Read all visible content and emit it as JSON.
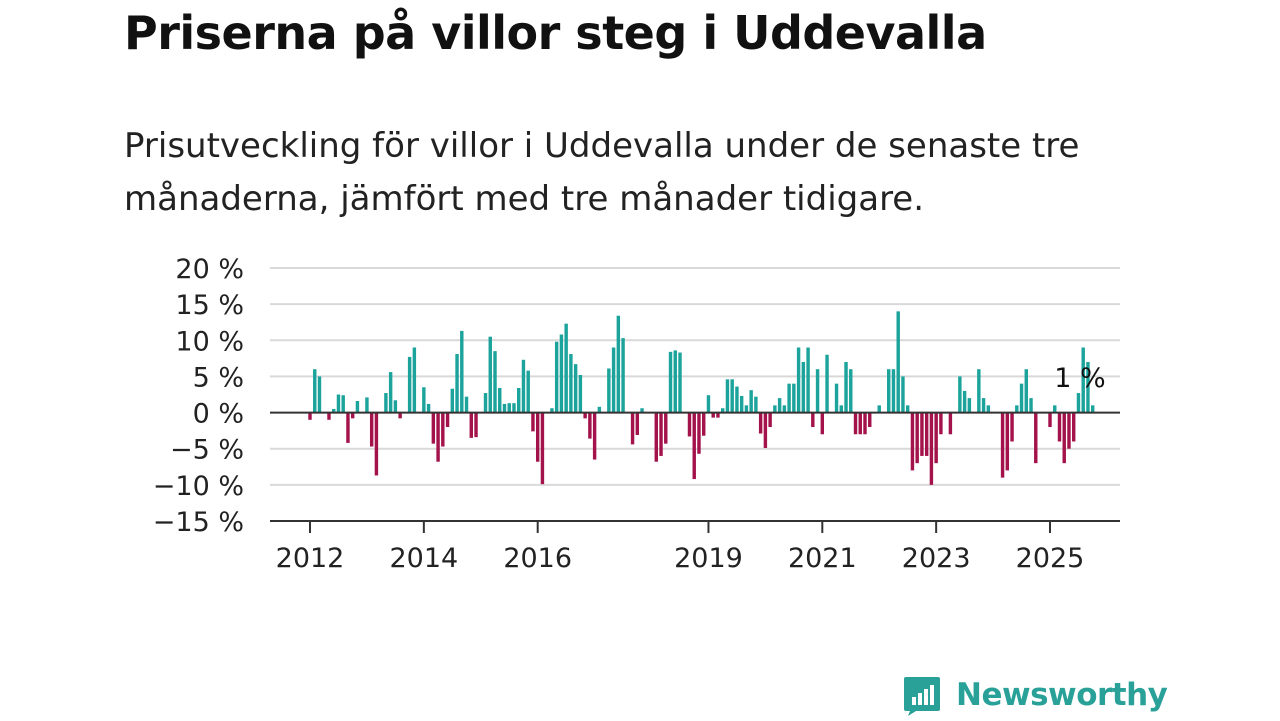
{
  "header": {
    "title": "Priserna på villor steg i Uddevalla",
    "subtitle": "Prisutveckling för villor i Uddevalla under de senaste tre månaderna, jämfört med tre månader tidigare."
  },
  "brand": {
    "name": "Newsworthy",
    "icon": "newsworthy-logo-icon",
    "color": "#2aa198"
  },
  "chart_data": {
    "type": "bar",
    "title": "",
    "xlabel": "",
    "ylabel": "",
    "y_unit": "%",
    "ylim": [
      -15,
      20
    ],
    "y_ticks": [
      20,
      15,
      10,
      5,
      0,
      -5,
      -10,
      -15
    ],
    "y_tick_labels": [
      "20 %",
      "15 %",
      "10 %",
      "5 %",
      "0 %",
      "−5 %",
      "−10 %",
      "−15 %"
    ],
    "x_ticks": [
      2012,
      2014,
      2016,
      2019,
      2021,
      2023,
      2025
    ],
    "x_tick_labels": [
      "2012",
      "2014",
      "2016",
      "2019",
      "2021",
      "2023",
      "2025"
    ],
    "grid": true,
    "positive_color": "#1ba39c",
    "negative_color": "#a3124a",
    "last_value_label": "1 %",
    "series": [
      {
        "start": "2012-01",
        "frequency": "monthly",
        "values": [
          -1,
          6,
          5,
          null,
          -1,
          0.5,
          2.5,
          2.4,
          -4.2,
          -0.8,
          1.6,
          null,
          2.1,
          -4.7,
          -8.7,
          null,
          2.7,
          5.6,
          1.7,
          -0.8,
          null,
          7.7,
          9,
          null,
          3.5,
          1.2,
          -4.3,
          -6.8,
          -4.7,
          -2,
          3.3,
          8.1,
          11.3,
          2.2,
          -3.5,
          -3.4,
          null,
          2.7,
          10.5,
          8.5,
          3.4,
          1.2,
          1.3,
          1.3,
          3.4,
          7.3,
          5.8,
          -2.6,
          -6.8,
          -9.9,
          null,
          0.6,
          9.8,
          10.8,
          12.3,
          8.1,
          6.7,
          5.2,
          -0.8,
          -3.6,
          -6.5,
          0.8,
          null,
          6.1,
          9,
          13.4,
          10.3,
          null,
          -4.4,
          -3.1,
          0.6,
          null,
          null,
          -6.8,
          -6,
          -4.3,
          8.4,
          8.6,
          8.3,
          null,
          -3.3,
          -9.2,
          -5.7,
          -3.2,
          2.4,
          -0.7,
          -0.7,
          0.6,
          4.6,
          4.6,
          3.6,
          2.3,
          1,
          3.1,
          2.2,
          -2.9,
          -4.9,
          -2,
          1,
          2,
          1,
          4,
          4,
          9,
          7,
          9,
          -2,
          6,
          -3,
          8,
          null,
          4,
          1,
          7,
          6,
          -3,
          -3,
          -3,
          -2,
          null,
          1,
          null,
          6,
          6,
          14,
          5,
          1,
          -8,
          -7,
          -6,
          -6,
          -10,
          -7,
          -3,
          null,
          -3,
          null,
          5,
          3,
          2,
          null,
          6,
          2,
          1,
          null,
          null,
          -9,
          -8,
          -4,
          1,
          4,
          6,
          2,
          -7,
          null,
          null,
          -2,
          1,
          -4,
          -7,
          -5,
          -4,
          2.7,
          9,
          7,
          1
        ]
      }
    ]
  }
}
